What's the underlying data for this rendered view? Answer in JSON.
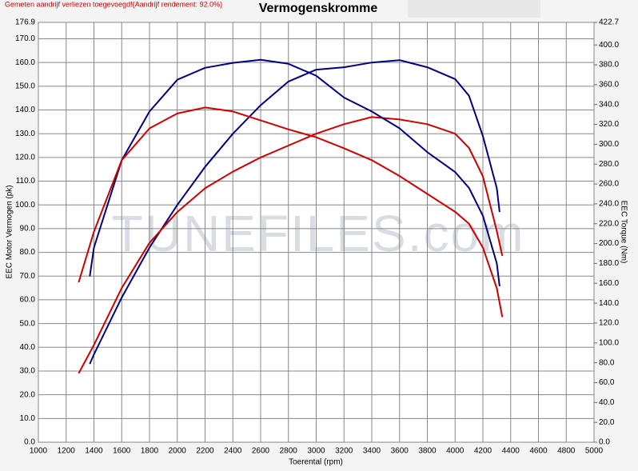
{
  "chart_data": {
    "type": "line",
    "notice": "Gemeten aandrijf verliezen toegevoegd!(Aandrijf rendement: 92.0%)",
    "title": "Vermogenskromme",
    "xlabel": "Toerental (rpm)",
    "ylabel": "EEC Motor Vermogen (pk)",
    "y2label": "EEC Torque (Nm)",
    "watermark": "TUNEFILES.com",
    "xlim": [
      1000,
      5000
    ],
    "xticks": [
      1000,
      1200,
      1400,
      1600,
      1800,
      2000,
      2200,
      2400,
      2600,
      2800,
      3000,
      3200,
      3400,
      3600,
      3800,
      4000,
      4200,
      4400,
      4600,
      4800,
      5000
    ],
    "ylim": [
      0,
      176.9
    ],
    "yticks": [
      {
        "value": 0,
        "label": "0.0"
      },
      {
        "value": 10,
        "label": "10.0"
      },
      {
        "value": 20,
        "label": "20.0"
      },
      {
        "value": 30,
        "label": "30.0"
      },
      {
        "value": 40,
        "label": "40.0"
      },
      {
        "value": 50,
        "label": "50.0"
      },
      {
        "value": 60,
        "label": "60.0"
      },
      {
        "value": 70,
        "label": "70.0"
      },
      {
        "value": 80,
        "label": "80.0"
      },
      {
        "value": 90,
        "label": "90.0"
      },
      {
        "value": 100,
        "label": "100.0"
      },
      {
        "value": 110,
        "label": "110.0"
      },
      {
        "value": 120,
        "label": "120.0"
      },
      {
        "value": 130,
        "label": "130.0"
      },
      {
        "value": 140,
        "label": "140.0"
      },
      {
        "value": 150,
        "label": "150.0"
      },
      {
        "value": 160,
        "label": "160.0"
      },
      {
        "value": 170,
        "label": "170.0"
      },
      176.9
    ],
    "y2lim": [
      0,
      422.7
    ],
    "y2ticks": [
      {
        "value": 0,
        "label": "0.0"
      },
      {
        "value": 20,
        "label": "20.0"
      },
      {
        "value": 40,
        "label": "40.0"
      },
      {
        "value": 60,
        "label": "60.0"
      },
      {
        "value": 80,
        "label": "80.0"
      },
      {
        "value": 100,
        "label": "100.0"
      },
      {
        "value": 120,
        "label": "120.0"
      },
      {
        "value": 140,
        "label": "140.0"
      },
      {
        "value": 160,
        "label": "160.0"
      },
      {
        "value": 180,
        "label": "180.0"
      },
      {
        "value": 200,
        "label": "200.0"
      },
      {
        "value": 220,
        "label": "220.0"
      },
      {
        "value": 240,
        "label": "240.0"
      },
      {
        "value": 260,
        "label": "260.0"
      },
      {
        "value": 280,
        "label": "280.0"
      },
      {
        "value": 300,
        "label": "300.0"
      },
      {
        "value": 320,
        "label": "320.0"
      },
      {
        "value": 340,
        "label": "340.0"
      },
      {
        "value": 360,
        "label": "360.0"
      },
      {
        "value": 380,
        "label": "380.0"
      },
      {
        "value": 400,
        "label": "400.0"
      },
      422.7
    ],
    "grid": true,
    "series": [
      {
        "color": "#00007f",
        "x": [
          1370,
          1400,
          1600,
          1800,
          2000,
          2200,
          2400,
          2600,
          2800,
          3000,
          3200,
          3400,
          3600,
          3800,
          4000,
          4100,
          4200,
          4300,
          4320
        ],
        "values": [
          33,
          37,
          61,
          82,
          100,
          116,
          130,
          142,
          152,
          157,
          158,
          160,
          161,
          158,
          153,
          146,
          129,
          107,
          97
        ]
      },
      {
        "color": "#cc0000",
        "x": [
          1290,
          1400,
          1600,
          1800,
          2000,
          2200,
          2400,
          2600,
          2800,
          3000,
          3200,
          3400,
          3600,
          3800,
          4000,
          4100,
          4200,
          4300,
          4340
        ],
        "values": [
          29,
          41,
          65,
          84,
          97,
          107,
          114,
          120,
          125,
          130,
          134,
          137,
          136,
          134,
          130,
          124,
          112,
          89,
          78.5
        ]
      },
      {
        "color": "#00007f",
        "axis": "y2",
        "x": [
          1370,
          1400,
          1600,
          1800,
          2000,
          2200,
          2400,
          2600,
          2800,
          3000,
          3200,
          3400,
          3600,
          3800,
          4000,
          4100,
          4200,
          4300,
          4320
        ],
        "values": [
          167,
          196,
          284,
          333,
          365,
          377,
          382,
          385,
          381,
          369,
          347,
          333,
          316,
          292,
          272,
          256,
          228,
          180,
          157
        ]
      },
      {
        "color": "#cc0000",
        "axis": "y2",
        "x": [
          1290,
          1400,
          1600,
          1800,
          2000,
          2200,
          2400,
          2600,
          2800,
          3000,
          3200,
          3400,
          3600,
          3800,
          4000,
          4100,
          4200,
          4300,
          4340
        ],
        "values": [
          161,
          212,
          284,
          316,
          331,
          337,
          333,
          324,
          315,
          307,
          296,
          284,
          268,
          250,
          232,
          220,
          196,
          155,
          126
        ]
      }
    ]
  }
}
